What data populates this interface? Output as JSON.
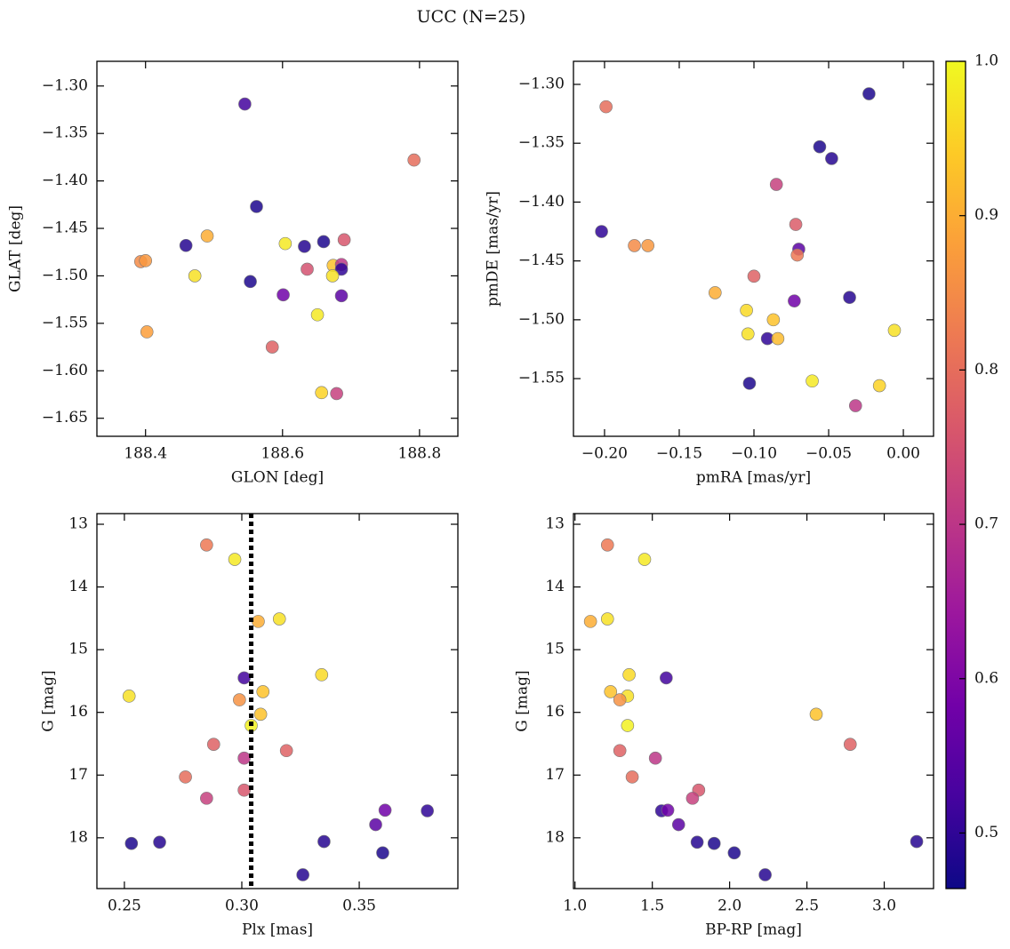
{
  "title": "UCC (N=25)",
  "colorbar": {
    "clim": [
      0.464,
      1.0
    ],
    "ticks": [
      0.5,
      0.6,
      0.7,
      0.8,
      0.9,
      {
        "value": 1.0,
        "label": "1.0"
      }
    ],
    "colormap": [
      "#0d0887",
      "#46039f",
      "#7201a8",
      "#9c179e",
      "#bd3786",
      "#d8576b",
      "#ed7953",
      "#fb9f3a",
      "#fdca26",
      "#f0f921"
    ]
  },
  "chart_data": [
    {
      "type": "scatter",
      "xlabel": "GLON [deg]",
      "ylabel": "GLAT [deg]",
      "xlim": [
        188.329,
        188.856
      ],
      "ylim": [
        -1.669,
        -1.274
      ],
      "xticks": [
        188.4,
        188.6,
        188.8
      ],
      "yticks": [
        {
          "value": -1.3,
          "label": "−1.30"
        },
        {
          "value": -1.35,
          "label": "−1.35"
        },
        {
          "value": -1.4,
          "label": "−1.40"
        },
        {
          "value": -1.45,
          "label": "−1.45"
        },
        {
          "value": -1.5,
          "label": "−1.50"
        },
        {
          "value": -1.55,
          "label": "−1.55"
        },
        {
          "value": -1.6,
          "label": "−1.60"
        },
        {
          "value": -1.65,
          "label": "−1.65"
        }
      ],
      "x": [
        188.545,
        188.792,
        188.562,
        188.459,
        188.49,
        188.393,
        188.4,
        188.472,
        188.553,
        188.604,
        188.632,
        188.66,
        188.69,
        188.636,
        188.674,
        188.686,
        188.686,
        188.673,
        188.601,
        188.686,
        188.402,
        188.651,
        188.585,
        188.657,
        188.679
      ],
      "y": [
        -1.319,
        -1.378,
        -1.427,
        -1.468,
        -1.458,
        -1.485,
        -1.484,
        -1.5,
        -1.506,
        -1.466,
        -1.469,
        -1.464,
        -1.462,
        -1.493,
        -1.489,
        -1.488,
        -1.493,
        -1.5,
        -1.52,
        -1.521,
        -1.559,
        -1.541,
        -1.575,
        -1.623,
        -1.624
      ],
      "c": [
        0.52,
        0.8,
        0.48,
        0.49,
        0.9,
        0.85,
        0.87,
        0.97,
        0.48,
        0.98,
        0.49,
        0.48,
        0.76,
        0.75,
        0.93,
        0.7,
        0.5,
        0.97,
        0.58,
        0.55,
        0.88,
        0.98,
        0.78,
        0.95,
        0.72
      ]
    },
    {
      "type": "scatter",
      "xlabel": "pmRA [mas/yr]",
      "ylabel": "pmDE [mas/yr]",
      "xlim": [
        -0.2208,
        0.0202
      ],
      "ylim": [
        -1.599,
        -1.2804
      ],
      "xticks": [
        {
          "value": -0.2,
          "label": "−0.20"
        },
        {
          "value": -0.15,
          "label": "−0.15"
        },
        {
          "value": -0.1,
          "label": "−0.10"
        },
        {
          "value": -0.05,
          "label": "−0.05"
        },
        {
          "value": 0.0,
          "label": "0.00"
        }
      ],
      "yticks": [
        {
          "value": -1.3,
          "label": "−1.30"
        },
        {
          "value": -1.35,
          "label": "−1.35"
        },
        {
          "value": -1.4,
          "label": "−1.40"
        },
        {
          "value": -1.45,
          "label": "−1.45"
        },
        {
          "value": -1.5,
          "label": "−1.50"
        },
        {
          "value": -1.55,
          "label": "−1.55"
        }
      ],
      "x": [
        -0.199,
        -0.023,
        -0.056,
        -0.048,
        -0.085,
        -0.202,
        -0.18,
        -0.171,
        -0.072,
        -0.07,
        -0.071,
        -0.1,
        -0.126,
        -0.036,
        -0.073,
        -0.105,
        -0.087,
        -0.104,
        -0.006,
        -0.091,
        -0.084,
        -0.103,
        -0.061,
        -0.016,
        -0.032
      ],
      "y": [
        -1.319,
        -1.308,
        -1.353,
        -1.363,
        -1.385,
        -1.425,
        -1.437,
        -1.437,
        -1.419,
        -1.44,
        -1.445,
        -1.463,
        -1.477,
        -1.481,
        -1.484,
        -1.492,
        -1.5,
        -1.512,
        -1.509,
        -1.516,
        -1.516,
        -1.554,
        -1.552,
        -1.556,
        -1.573
      ],
      "c": [
        0.8,
        0.48,
        0.48,
        0.49,
        0.72,
        0.5,
        0.85,
        0.87,
        0.77,
        0.55,
        0.82,
        0.78,
        0.9,
        0.49,
        0.58,
        0.96,
        0.93,
        0.97,
        0.97,
        0.5,
        0.92,
        0.48,
        0.98,
        0.95,
        0.7
      ]
    },
    {
      "type": "scatter",
      "xlabel": "Plx [mas]",
      "ylabel": "G [mag]",
      "xlim": [
        0.2383,
        0.392
      ],
      "ylim": [
        18.81,
        12.83
      ],
      "xticks": [
        0.25,
        {
          "value": 0.3,
          "label": "0.30"
        },
        0.35
      ],
      "yticks": [
        13,
        14,
        15,
        16,
        17,
        18
      ],
      "vline": 0.304,
      "x": [
        0.285,
        0.297,
        0.307,
        0.316,
        0.252,
        0.301,
        0.334,
        0.309,
        0.299,
        0.308,
        0.304,
        0.288,
        0.319,
        0.301,
        0.276,
        0.301,
        0.285,
        0.361,
        0.379,
        0.357,
        0.253,
        0.265,
        0.335,
        0.36,
        0.326
      ],
      "y": [
        13.33,
        13.56,
        14.55,
        14.51,
        15.74,
        15.45,
        15.4,
        15.67,
        15.8,
        16.03,
        16.21,
        16.51,
        16.61,
        16.73,
        17.03,
        17.24,
        17.37,
        17.56,
        17.57,
        17.79,
        18.09,
        18.07,
        18.06,
        18.24,
        18.59
      ],
      "c": [
        0.82,
        0.98,
        0.9,
        0.97,
        0.97,
        0.52,
        0.96,
        0.93,
        0.86,
        0.93,
        0.99,
        0.78,
        0.78,
        0.7,
        0.8,
        0.76,
        0.72,
        0.58,
        0.5,
        0.55,
        0.48,
        0.49,
        0.49,
        0.48,
        0.49
      ]
    },
    {
      "type": "scatter",
      "xlabel": "BP-RP [mag]",
      "ylabel": "G [mag]",
      "xlim": [
        0.99,
        3.319
      ],
      "ylim": [
        18.81,
        12.83
      ],
      "xticks": [
        {
          "value": 1.0,
          "label": "1.0"
        },
        1.5,
        {
          "value": 2.0,
          "label": "2.0"
        },
        2.5,
        {
          "value": 3.0,
          "label": "3.0"
        }
      ],
      "yticks": [
        13,
        14,
        15,
        16,
        17,
        18
      ],
      "x": [
        1.21,
        1.45,
        1.1,
        1.21,
        1.35,
        1.59,
        1.23,
        1.34,
        1.29,
        2.56,
        1.34,
        2.78,
        1.29,
        1.52,
        1.37,
        1.8,
        1.76,
        1.56,
        1.6,
        1.67,
        1.79,
        1.9,
        3.21,
        2.03,
        2.23
      ],
      "y": [
        13.33,
        13.56,
        14.55,
        14.51,
        15.4,
        15.45,
        15.67,
        15.74,
        15.8,
        16.03,
        16.21,
        16.51,
        16.61,
        16.73,
        17.03,
        17.24,
        17.37,
        17.57,
        17.56,
        17.79,
        18.07,
        18.09,
        18.06,
        18.24,
        18.59
      ],
      "c": [
        0.82,
        0.98,
        0.9,
        0.97,
        0.96,
        0.52,
        0.93,
        0.97,
        0.86,
        0.93,
        0.99,
        0.78,
        0.78,
        0.7,
        0.8,
        0.76,
        0.72,
        0.5,
        0.58,
        0.55,
        0.49,
        0.48,
        0.49,
        0.48,
        0.49
      ]
    }
  ]
}
